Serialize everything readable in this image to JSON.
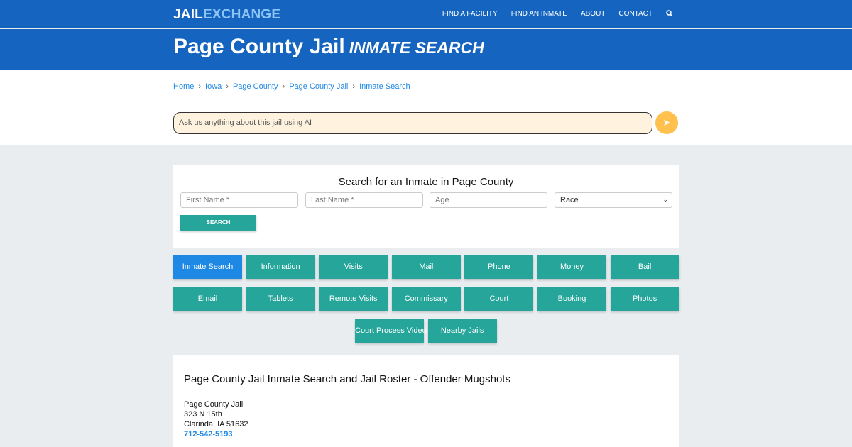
{
  "header": {
    "logo_a": "JAIL",
    "logo_b": "EXCHANGE",
    "nav": [
      "FIND A FACILITY",
      "FIND AN INMATE",
      "ABOUT",
      "CONTACT"
    ]
  },
  "title": {
    "main": "Page County Jail",
    "sub": "INMATE SEARCH"
  },
  "breadcrumb": [
    "Home",
    "Iowa",
    "Page County",
    "Page County Jail",
    "Inmate Search"
  ],
  "ai": {
    "placeholder": "Ask us anything about this jail using AI"
  },
  "search": {
    "heading": "Search for an Inmate in Page County",
    "first": "First Name *",
    "last": "Last Name *",
    "age": "Age",
    "race": "Race",
    "button": "SEARCH"
  },
  "buttons": [
    "Inmate Search",
    "Information",
    "Visits",
    "Mail",
    "Phone",
    "Money",
    "Bail",
    "Email",
    "Tablets",
    "Remote Visits",
    "Commissary",
    "Court",
    "Booking",
    "Photos",
    "Court Process Video",
    "Nearby Jails"
  ],
  "info": {
    "heading": "Page County Jail Inmate Search and Jail Roster - Offender Mugshots",
    "name": "Page County Jail",
    "street": "323 N 15th",
    "city": "Clarinda, IA 51632",
    "phone": "712-542-5193"
  },
  "colors": {
    "brand": "#1565c0",
    "teal": "#26a69a",
    "active": "#1e88e5"
  }
}
